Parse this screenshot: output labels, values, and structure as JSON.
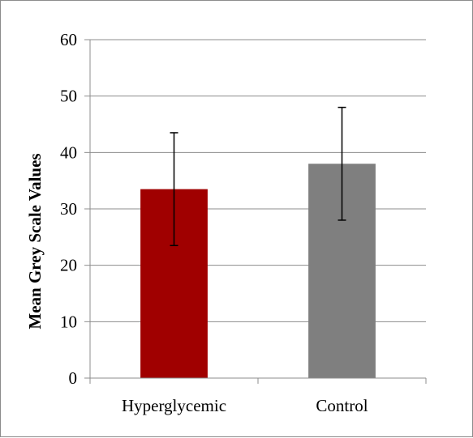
{
  "chart_data": {
    "type": "bar",
    "title": "",
    "xlabel": "",
    "ylabel": "Mean Grey Scale Values",
    "categories": [
      "Hyperglycemic",
      "Control"
    ],
    "values": [
      33.5,
      38.0
    ],
    "error": [
      10.0,
      10.0
    ],
    "ylim": [
      0,
      60
    ],
    "yticks": [
      0,
      10,
      20,
      30,
      40,
      50,
      60
    ],
    "grid": true,
    "legend": "none",
    "colors": [
      "#a00000",
      "#7f7f7f"
    ]
  }
}
